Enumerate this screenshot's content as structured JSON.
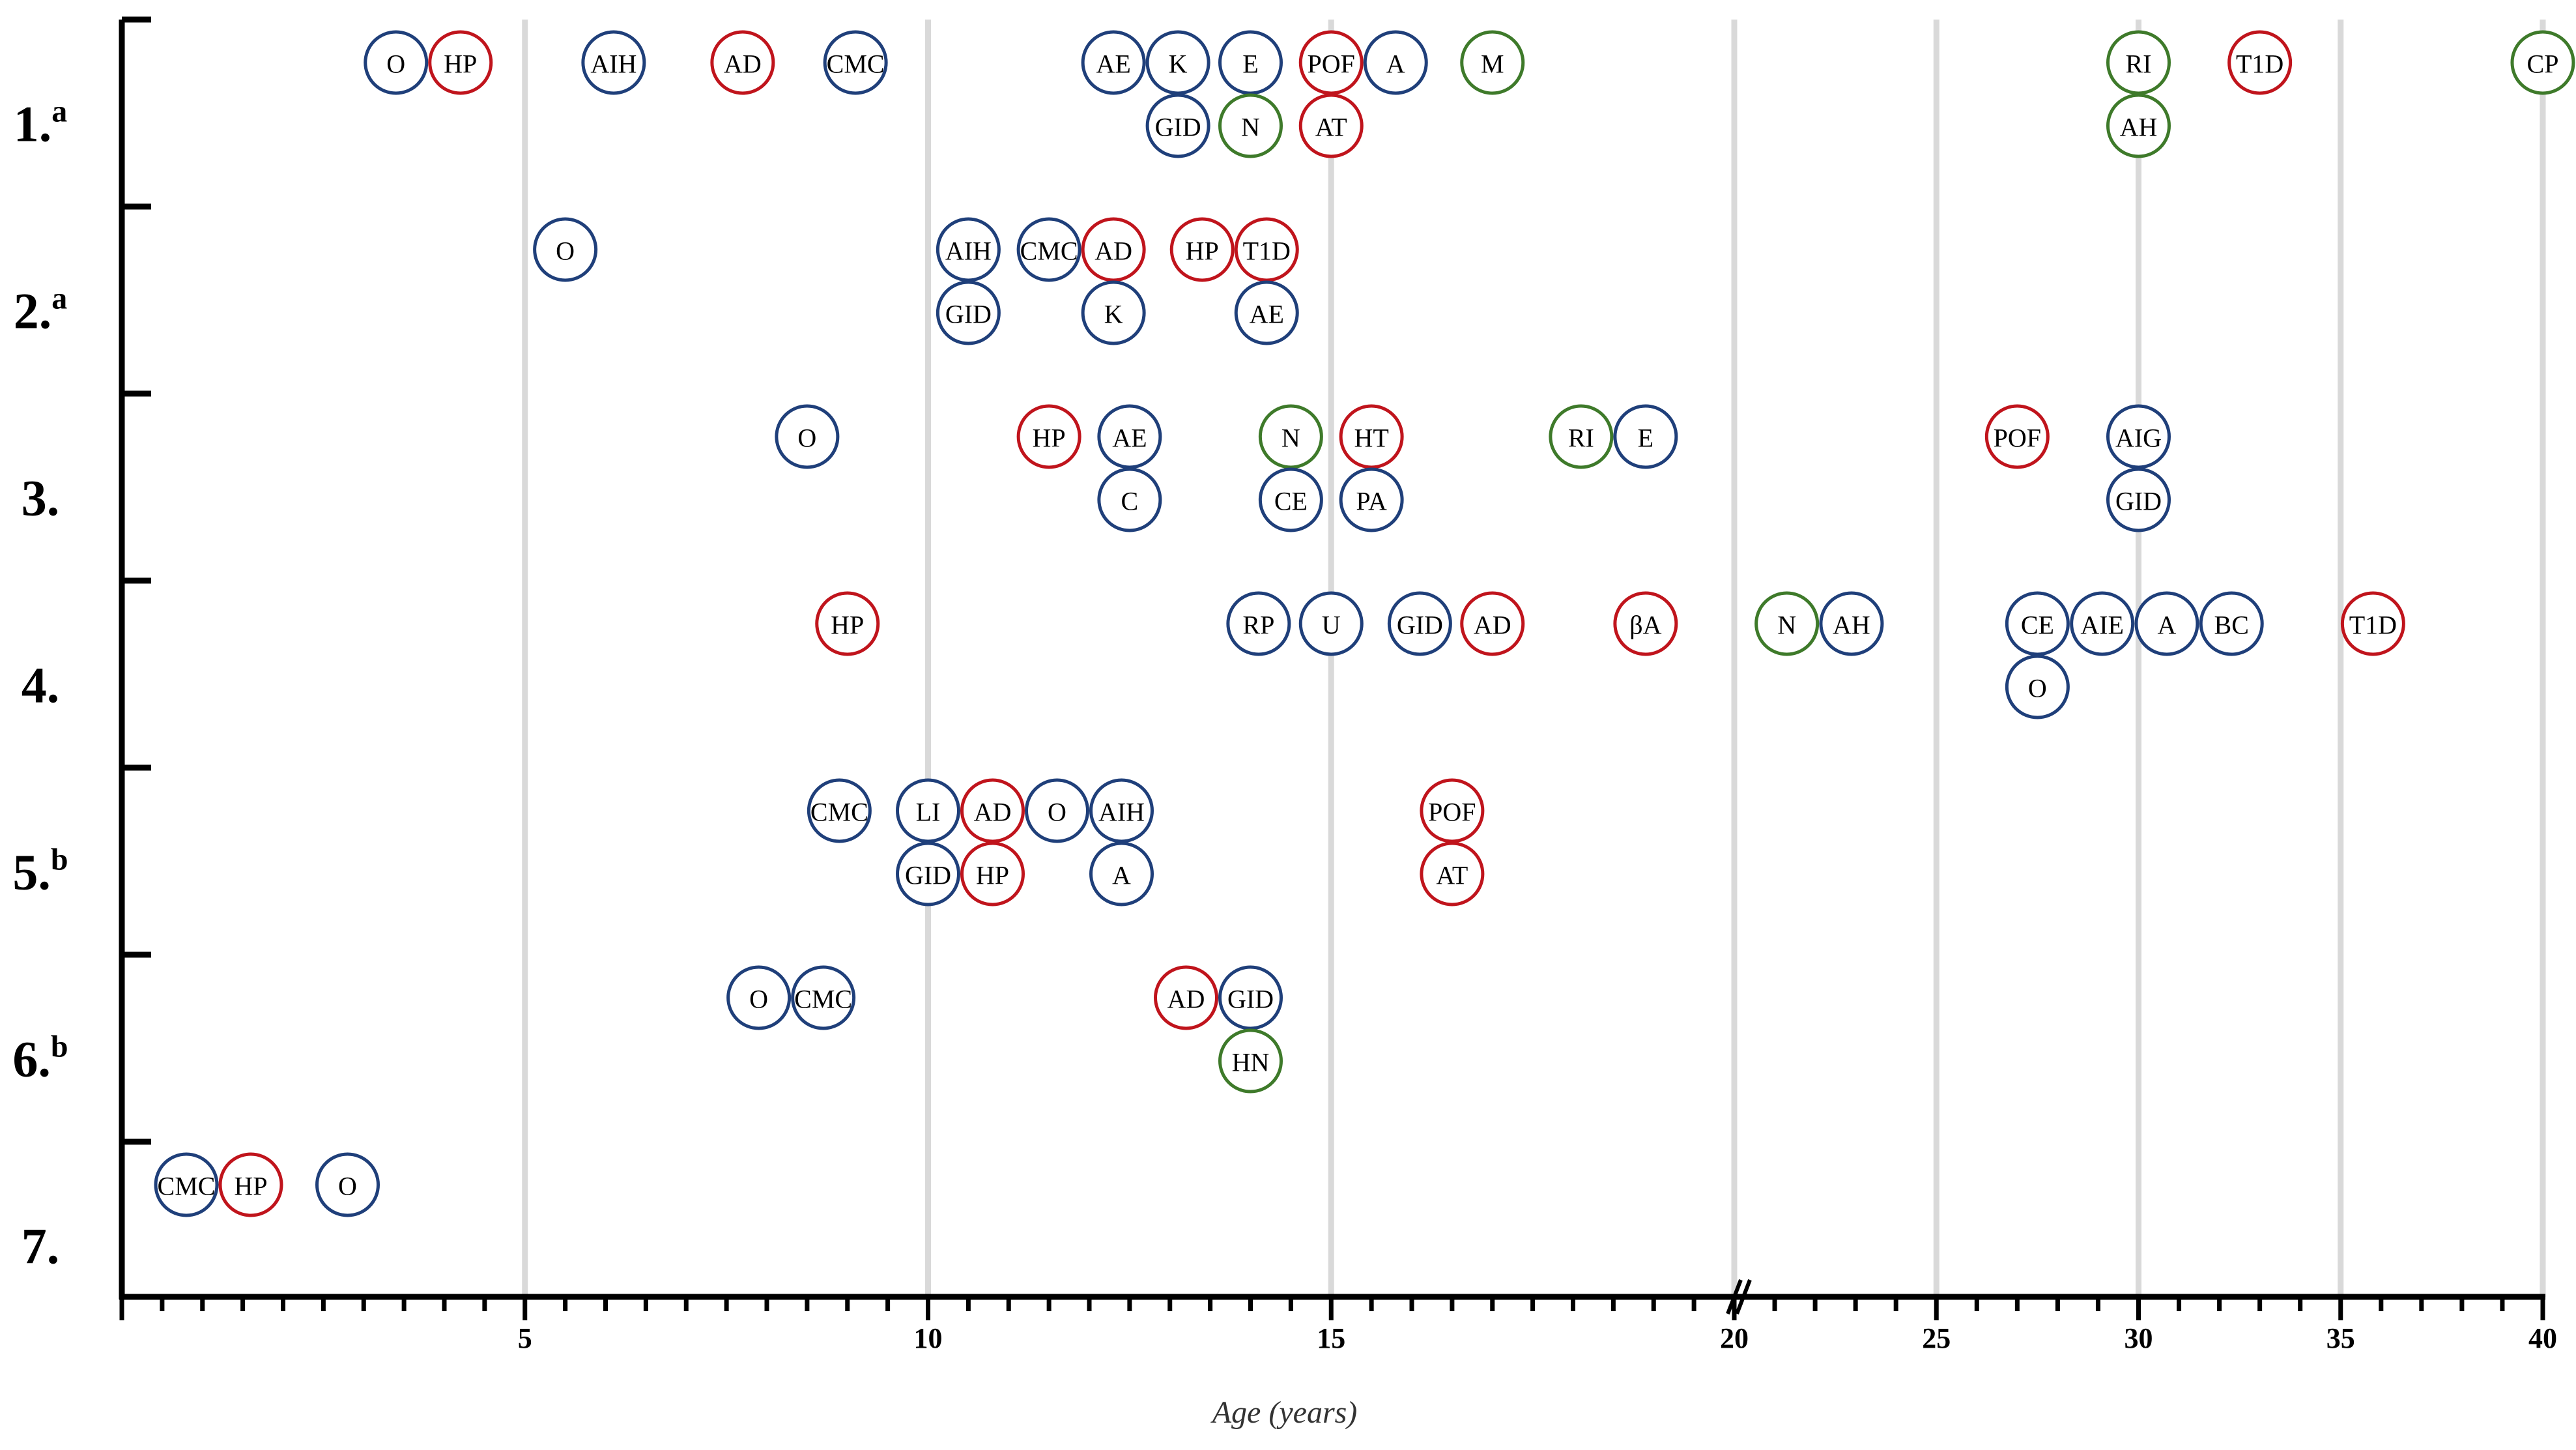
{
  "chart_data": {
    "type": "scatter",
    "title": "",
    "xlabel": "Age (years)",
    "ylabel": "",
    "x_axis": {
      "segments": [
        {
          "range": [
            0,
            20
          ],
          "ticks": [
            5,
            10,
            15,
            20
          ],
          "minor_step": 0.5
        },
        {
          "range": [
            20,
            40
          ],
          "ticks": [
            25,
            30,
            35,
            40
          ],
          "minor_step": 1
        }
      ],
      "axis_break_at": 20
    },
    "grid": true,
    "colors": {
      "red": "#c0141c",
      "blue": "#1f3f7a",
      "green": "#3e7a2a"
    },
    "rows": [
      {
        "label": "1.",
        "sup": "a"
      },
      {
        "label": "2.",
        "sup": "a"
      },
      {
        "label": "3.",
        "sup": ""
      },
      {
        "label": "4.",
        "sup": ""
      },
      {
        "label": "5.",
        "sup": "b"
      },
      {
        "label": "6.",
        "sup": "b"
      },
      {
        "label": "7.",
        "sup": ""
      }
    ],
    "points": [
      {
        "row": 0,
        "line": 0,
        "x": 3.4,
        "label": "O",
        "color": "blue"
      },
      {
        "row": 0,
        "line": 0,
        "x": 4.2,
        "label": "HP",
        "color": "red"
      },
      {
        "row": 0,
        "line": 0,
        "x": 6.1,
        "label": "AIH",
        "color": "blue"
      },
      {
        "row": 0,
        "line": 0,
        "x": 7.7,
        "label": "AD",
        "color": "red"
      },
      {
        "row": 0,
        "line": 0,
        "x": 9.1,
        "label": "CMC",
        "color": "blue"
      },
      {
        "row": 0,
        "line": 0,
        "x": 12.3,
        "label": "AE",
        "color": "blue"
      },
      {
        "row": 0,
        "line": 0,
        "x": 13.1,
        "label": "K",
        "color": "blue"
      },
      {
        "row": 0,
        "line": 0,
        "x": 14.0,
        "label": "E",
        "color": "blue"
      },
      {
        "row": 0,
        "line": 0,
        "x": 15.0,
        "label": "POF",
        "color": "red"
      },
      {
        "row": 0,
        "line": 0,
        "x": 15.8,
        "label": "A",
        "color": "blue"
      },
      {
        "row": 0,
        "line": 0,
        "x": 17.0,
        "label": "M",
        "color": "green"
      },
      {
        "row": 0,
        "line": 0,
        "x": 30.0,
        "label": "RI",
        "color": "green"
      },
      {
        "row": 0,
        "line": 0,
        "x": 33.0,
        "label": "T1D",
        "color": "red"
      },
      {
        "row": 0,
        "line": 0,
        "x": 40.0,
        "label": "CP",
        "color": "green"
      },
      {
        "row": 0,
        "line": 1,
        "x": 13.1,
        "label": "GID",
        "color": "blue"
      },
      {
        "row": 0,
        "line": 1,
        "x": 14.0,
        "label": "N",
        "color": "green"
      },
      {
        "row": 0,
        "line": 1,
        "x": 15.0,
        "label": "AT",
        "color": "red"
      },
      {
        "row": 0,
        "line": 1,
        "x": 30.0,
        "label": "AH",
        "color": "green"
      },
      {
        "row": 1,
        "line": 0,
        "x": 5.5,
        "label": "O",
        "color": "blue"
      },
      {
        "row": 1,
        "line": 0,
        "x": 10.5,
        "label": "AIH",
        "color": "blue"
      },
      {
        "row": 1,
        "line": 0,
        "x": 11.5,
        "label": "CMC",
        "color": "blue"
      },
      {
        "row": 1,
        "line": 0,
        "x": 12.3,
        "label": "AD",
        "color": "red"
      },
      {
        "row": 1,
        "line": 0,
        "x": 13.4,
        "label": "HP",
        "color": "red"
      },
      {
        "row": 1,
        "line": 0,
        "x": 14.2,
        "label": "T1D",
        "color": "red"
      },
      {
        "row": 1,
        "line": 1,
        "x": 10.5,
        "label": "GID",
        "color": "blue"
      },
      {
        "row": 1,
        "line": 1,
        "x": 12.3,
        "label": "K",
        "color": "blue"
      },
      {
        "row": 1,
        "line": 1,
        "x": 14.2,
        "label": "AE",
        "color": "blue"
      },
      {
        "row": 2,
        "line": 0,
        "x": 8.5,
        "label": "O",
        "color": "blue"
      },
      {
        "row": 2,
        "line": 0,
        "x": 11.5,
        "label": "HP",
        "color": "red"
      },
      {
        "row": 2,
        "line": 0,
        "x": 12.5,
        "label": "AE",
        "color": "blue"
      },
      {
        "row": 2,
        "line": 0,
        "x": 14.5,
        "label": "N",
        "color": "green"
      },
      {
        "row": 2,
        "line": 0,
        "x": 15.5,
        "label": "HT",
        "color": "red"
      },
      {
        "row": 2,
        "line": 0,
        "x": 18.1,
        "label": "RI",
        "color": "green"
      },
      {
        "row": 2,
        "line": 0,
        "x": 18.9,
        "label": "E",
        "color": "blue"
      },
      {
        "row": 2,
        "line": 0,
        "x": 27.0,
        "label": "POF",
        "color": "red"
      },
      {
        "row": 2,
        "line": 0,
        "x": 30.0,
        "label": "AIG",
        "color": "blue"
      },
      {
        "row": 2,
        "line": 1,
        "x": 12.5,
        "label": "C",
        "color": "blue"
      },
      {
        "row": 2,
        "line": 1,
        "x": 14.5,
        "label": "CE",
        "color": "blue"
      },
      {
        "row": 2,
        "line": 1,
        "x": 15.5,
        "label": "PA",
        "color": "blue"
      },
      {
        "row": 2,
        "line": 1,
        "x": 30.0,
        "label": "GID",
        "color": "blue"
      },
      {
        "row": 3,
        "line": 0,
        "x": 9.0,
        "label": "HP",
        "color": "red"
      },
      {
        "row": 3,
        "line": 0,
        "x": 14.1,
        "label": "RP",
        "color": "blue"
      },
      {
        "row": 3,
        "line": 0,
        "x": 15.0,
        "label": "U",
        "color": "blue"
      },
      {
        "row": 3,
        "line": 0,
        "x": 16.1,
        "label": "GID",
        "color": "blue"
      },
      {
        "row": 3,
        "line": 0,
        "x": 17.0,
        "label": "AD",
        "color": "red"
      },
      {
        "row": 3,
        "line": 0,
        "x": 18.9,
        "label": "βA",
        "color": "red"
      },
      {
        "row": 3,
        "line": 0,
        "x": 21.3,
        "label": "N",
        "color": "green"
      },
      {
        "row": 3,
        "line": 0,
        "x": 22.9,
        "label": "AH",
        "color": "blue"
      },
      {
        "row": 3,
        "line": 0,
        "x": 27.5,
        "label": "CE",
        "color": "blue"
      },
      {
        "row": 3,
        "line": 0,
        "x": 29.1,
        "label": "AIE",
        "color": "blue"
      },
      {
        "row": 3,
        "line": 0,
        "x": 30.7,
        "label": "A",
        "color": "blue"
      },
      {
        "row": 3,
        "line": 0,
        "x": 32.3,
        "label": "BC",
        "color": "blue"
      },
      {
        "row": 3,
        "line": 0,
        "x": 35.8,
        "label": "T1D",
        "color": "red"
      },
      {
        "row": 3,
        "line": 1,
        "x": 27.5,
        "label": "O",
        "color": "blue"
      },
      {
        "row": 4,
        "line": 0,
        "x": 8.9,
        "label": "CMC",
        "color": "blue"
      },
      {
        "row": 4,
        "line": 0,
        "x": 10.0,
        "label": "LI",
        "color": "blue"
      },
      {
        "row": 4,
        "line": 0,
        "x": 10.8,
        "label": "AD",
        "color": "red"
      },
      {
        "row": 4,
        "line": 0,
        "x": 11.6,
        "label": "O",
        "color": "blue"
      },
      {
        "row": 4,
        "line": 0,
        "x": 12.4,
        "label": "AIH",
        "color": "blue"
      },
      {
        "row": 4,
        "line": 0,
        "x": 16.5,
        "label": "POF",
        "color": "red"
      },
      {
        "row": 4,
        "line": 1,
        "x": 10.0,
        "label": "GID",
        "color": "blue"
      },
      {
        "row": 4,
        "line": 1,
        "x": 10.8,
        "label": "HP",
        "color": "red"
      },
      {
        "row": 4,
        "line": 1,
        "x": 12.4,
        "label": "A",
        "color": "blue"
      },
      {
        "row": 4,
        "line": 1,
        "x": 16.5,
        "label": "AT",
        "color": "red"
      },
      {
        "row": 5,
        "line": 0,
        "x": 7.9,
        "label": "O",
        "color": "blue"
      },
      {
        "row": 5,
        "line": 0,
        "x": 8.7,
        "label": "CMC",
        "color": "blue"
      },
      {
        "row": 5,
        "line": 0,
        "x": 13.2,
        "label": "AD",
        "color": "red"
      },
      {
        "row": 5,
        "line": 0,
        "x": 14.0,
        "label": "GID",
        "color": "blue"
      },
      {
        "row": 5,
        "line": 1,
        "x": 14.0,
        "label": "HN",
        "color": "green"
      },
      {
        "row": 6,
        "line": 0,
        "x": 0.8,
        "label": "CMC",
        "color": "blue"
      },
      {
        "row": 6,
        "line": 0,
        "x": 1.6,
        "label": "HP",
        "color": "red"
      },
      {
        "row": 6,
        "line": 0,
        "x": 2.8,
        "label": "O",
        "color": "blue"
      }
    ]
  }
}
